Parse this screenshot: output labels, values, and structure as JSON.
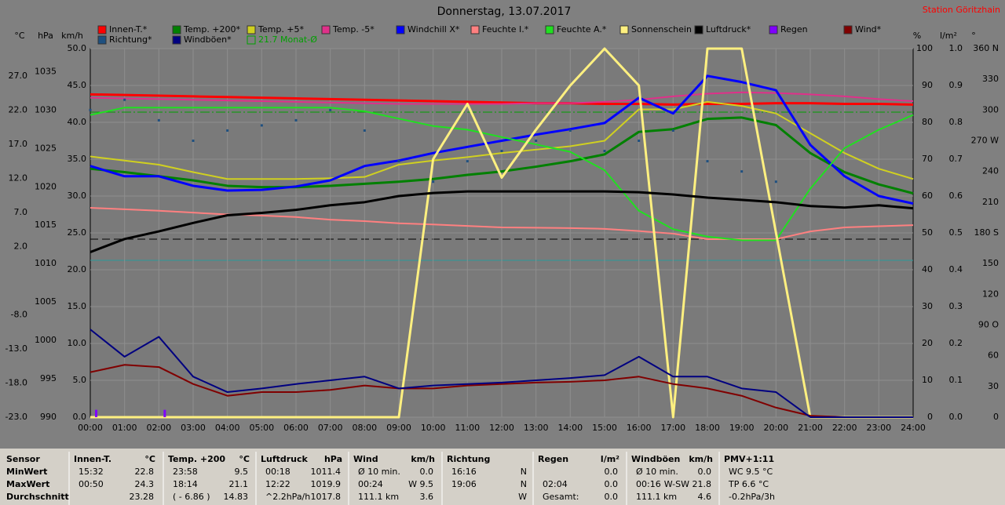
{
  "chart_data": {
    "type": "line",
    "title": "Donnerstag, 13.07.2017",
    "station": "Station Göritzhain",
    "categories": [
      "00:00",
      "01:00",
      "02:00",
      "03:00",
      "04:00",
      "05:00",
      "06:00",
      "07:00",
      "08:00",
      "09:00",
      "10:00",
      "11:00",
      "12:00",
      "13:00",
      "14:00",
      "15:00",
      "16:00",
      "17:00",
      "18:00",
      "19:00",
      "20:00",
      "21:00",
      "22:00",
      "23:00",
      "24:00"
    ],
    "grid": true,
    "axes": [
      {
        "unit": "°C",
        "side": "left",
        "ylim": [
          -23,
          31
        ],
        "yticks": [
          {
            "value": 27,
            "label": "27.0"
          },
          {
            "value": 22,
            "label": "22.0"
          },
          {
            "value": 17,
            "label": "17.0"
          },
          {
            "value": 12,
            "label": "12.0"
          },
          {
            "value": 7,
            "label": "7.0"
          },
          {
            "value": 2,
            "label": "2.0"
          },
          {
            "value": -8,
            "label": "-8.0"
          },
          {
            "value": -13,
            "label": "-13.0"
          },
          {
            "value": -18,
            "label": "-18.0"
          },
          {
            "value": -23,
            "label": "-23.0"
          }
        ]
      },
      {
        "unit": "hPa",
        "side": "left",
        "ylim": [
          990,
          1038
        ],
        "yticks": [
          1035,
          1030,
          1025,
          1020,
          1015,
          1010,
          1005,
          1000,
          995,
          990
        ]
      },
      {
        "unit": "km/h",
        "side": "left",
        "ylim": [
          0,
          50
        ],
        "yticks": [
          {
            "value": 50,
            "label": "50.0"
          },
          {
            "value": 45,
            "label": "45.0"
          },
          {
            "value": 40,
            "label": "40.0"
          },
          {
            "value": 35,
            "label": "35.0"
          },
          {
            "value": 30,
            "label": "30.0"
          },
          {
            "value": 25,
            "label": "25.0"
          },
          {
            "value": 20,
            "label": "20.0"
          },
          {
            "value": 15,
            "label": "15.0"
          },
          {
            "value": 10,
            "label": "10.0"
          },
          {
            "value": 5,
            "label": "5.0"
          },
          {
            "value": 0,
            "label": "0.0"
          }
        ]
      },
      {
        "unit": "%",
        "side": "right",
        "ylim": [
          0,
          100
        ],
        "yticks": [
          100,
          90,
          80,
          70,
          60,
          50,
          40,
          30,
          20,
          10,
          0
        ]
      },
      {
        "unit": "l/m²",
        "side": "right",
        "ylim": [
          0,
          1
        ],
        "yticks": [
          {
            "value": 1,
            "label": "1.0"
          },
          {
            "value": 0.9,
            "label": "0.9"
          },
          {
            "value": 0.8,
            "label": "0.8"
          },
          {
            "value": 0.7,
            "label": "0.7"
          },
          {
            "value": 0.6,
            "label": "0.6"
          },
          {
            "value": 0.5,
            "label": "0.5"
          },
          {
            "value": 0.4,
            "label": "0.4"
          },
          {
            "value": 0.3,
            "label": "0.3"
          },
          {
            "value": 0.2,
            "label": "0.2"
          },
          {
            "value": 0.1,
            "label": "0.1"
          },
          {
            "value": 0,
            "label": "0.0"
          }
        ]
      },
      {
        "unit": "°",
        "side": "right",
        "ylim": [
          0,
          360
        ],
        "yticks": [
          {
            "value": 360,
            "label": "360 N"
          },
          330,
          300,
          {
            "value": 270,
            "label": "270 W"
          },
          240,
          210,
          {
            "value": 180,
            "label": "180 S"
          },
          150,
          120,
          {
            "value": 90,
            "label": "90 O"
          },
          60,
          30,
          0
        ]
      }
    ],
    "series": [
      {
        "name": "Innen-T.*",
        "color": "#ff0000",
        "axis": 0,
        "width": 3,
        "values": [
          24.3,
          24.2,
          24.1,
          24.0,
          23.9,
          23.8,
          23.7,
          23.6,
          23.5,
          23.4,
          23.3,
          23.2,
          23.1,
          23.0,
          23.0,
          22.9,
          22.9,
          22.8,
          22.9,
          22.9,
          23.0,
          23.0,
          22.9,
          22.9,
          22.8
        ]
      },
      {
        "name": "Temp. +200*",
        "color": "#008000",
        "axis": 0,
        "width": 3,
        "values": [
          13.4,
          12.9,
          12.3,
          11.7,
          10.9,
          10.7,
          10.7,
          10.9,
          11.2,
          11.5,
          11.9,
          12.5,
          13.0,
          13.7,
          14.5,
          15.5,
          18.8,
          19.2,
          20.7,
          20.9,
          19.8,
          15.7,
          12.9,
          11.1,
          9.8
        ]
      },
      {
        "name": "Temp. +5*",
        "color": "#d0d020",
        "axis": 0,
        "width": 2,
        "values": [
          15.2,
          14.6,
          14.0,
          12.9,
          11.9,
          11.9,
          11.9,
          12.0,
          12.2,
          14.0,
          14.6,
          15.1,
          15.7,
          16.2,
          16.7,
          17.5,
          22.1,
          22.1,
          23.2,
          22.6,
          21.5,
          18.6,
          15.7,
          13.4,
          11.9
        ]
      },
      {
        "name": "Temp. -5*",
        "color": "#e0308a",
        "axis": 0,
        "width": 2,
        "values": [
          23.8,
          23.7,
          23.6,
          23.5,
          23.4,
          23.3,
          23.2,
          23.1,
          23.0,
          22.9,
          22.9,
          22.9,
          22.9,
          23.0,
          23.0,
          23.2,
          23.5,
          24.0,
          24.4,
          24.6,
          24.5,
          24.3,
          24.0,
          23.6,
          23.3
        ]
      },
      {
        "name": "Windchill X*",
        "color": "#0000ff",
        "axis": 0,
        "width": 3,
        "values": [
          13.8,
          12.3,
          12.3,
          10.9,
          10.2,
          10.3,
          10.8,
          11.7,
          13.8,
          14.6,
          15.7,
          16.6,
          17.5,
          18.4,
          19.2,
          20.1,
          23.8,
          21.5,
          27.0,
          26.1,
          24.9,
          16.9,
          12.3,
          9.4,
          8.3
        ]
      },
      {
        "name": "Feuchte I.*",
        "color": "#ff8080",
        "axis": 3,
        "width": 2,
        "values": [
          56.8,
          56.4,
          56.0,
          55.5,
          55.0,
          54.7,
          54.3,
          53.6,
          53.2,
          52.6,
          52.3,
          51.9,
          51.5,
          51.4,
          51.3,
          51.1,
          50.5,
          49.8,
          48.3,
          48.3,
          48.3,
          50.4,
          51.5,
          51.8,
          52.1
        ]
      },
      {
        "name": "Feuchte A.*",
        "color": "#20e020",
        "axis": 3,
        "width": 2,
        "values": [
          82,
          84,
          84,
          84,
          84,
          84,
          84,
          84,
          83,
          81,
          79,
          78,
          76,
          74,
          72,
          67,
          56,
          51,
          49,
          48,
          48,
          62,
          73,
          78,
          82
        ]
      },
      {
        "name": "Sonnenschein",
        "color": "#fff080",
        "axis": 3,
        "width": 3,
        "values": [
          0,
          0,
          0,
          0,
          0,
          0,
          0,
          0,
          0,
          0,
          70,
          85,
          65,
          78,
          90,
          100,
          90,
          0,
          100,
          100,
          50,
          0,
          0,
          0,
          0
        ]
      },
      {
        "name": "Luftdruck*",
        "color": "#000000",
        "axis": 1,
        "width": 3,
        "values": [
          1011.5,
          1013.2,
          1014.2,
          1015.3,
          1016.3,
          1016.6,
          1017.0,
          1017.6,
          1018.0,
          1018.8,
          1019.2,
          1019.4,
          1019.4,
          1019.4,
          1019.4,
          1019.4,
          1019.3,
          1019.0,
          1018.6,
          1018.3,
          1018.0,
          1017.5,
          1017.3,
          1017.6,
          1017.2
        ]
      },
      {
        "name": "Regen",
        "color": "#8000ff",
        "axis": 4,
        "kind": "bars",
        "values": [
          0.02,
          0,
          0.02,
          0,
          0,
          0,
          0,
          0,
          0,
          0,
          0,
          0,
          0,
          0,
          0,
          0,
          0,
          0,
          0,
          0,
          0,
          0,
          0,
          0,
          0
        ]
      },
      {
        "name": "Wind*",
        "color": "#800000",
        "axis": 2,
        "width": 2,
        "values": [
          6.1,
          7.1,
          6.8,
          4.5,
          2.9,
          3.4,
          3.4,
          3.7,
          4.3,
          3.9,
          3.9,
          4.3,
          4.5,
          4.7,
          4.8,
          5.0,
          5.5,
          4.5,
          3.9,
          2.9,
          1.3,
          0.2,
          0,
          0,
          0
        ]
      },
      {
        "name": "Richtung*",
        "color": "#1e5080",
        "axis": 5,
        "kind": "dots",
        "values": [
          300,
          310,
          290,
          270,
          280,
          285,
          290,
          300,
          280,
          250,
          230,
          250,
          260,
          270,
          280,
          260,
          270,
          280,
          250,
          240,
          230,
          null,
          null,
          null,
          null
        ]
      },
      {
        "name": "Windböen*",
        "color": "#000080",
        "axis": 2,
        "width": 2,
        "values": [
          11.9,
          8.2,
          10.9,
          5.5,
          3.4,
          3.9,
          4.5,
          5.0,
          5.5,
          3.9,
          4.3,
          4.5,
          4.7,
          5.0,
          5.3,
          5.7,
          8.2,
          5.5,
          5.5,
          3.9,
          3.4,
          0,
          0,
          0,
          0
        ]
      }
    ],
    "monthly_mean": {
      "label": "21.7 Monat-Ø",
      "value": 21.7,
      "axis": 0,
      "color": "#00a000"
    }
  },
  "table": {
    "row_labels": [
      "Sensor",
      "MinWert",
      "MaxWert",
      "Durchschnitt"
    ],
    "columns": [
      {
        "title": "Innen-T.",
        "unit": "°C",
        "cells": [
          {
            "left": "15:32",
            "right": "22.8"
          },
          {
            "left": "00:50",
            "right": "24.3"
          },
          {
            "right": "23.28"
          }
        ]
      },
      {
        "title": "Temp. +200",
        "unit": "°C",
        "cells": [
          {
            "left": "23:58",
            "right": "9.5"
          },
          {
            "left": "18:14",
            "right": "21.1"
          },
          {
            "left": "( - 6.86 )",
            "right": "14.83"
          }
        ]
      },
      {
        "title": "Luftdruck",
        "unit": "hPa",
        "cells": [
          {
            "left": "00:18",
            "right": "1011.4"
          },
          {
            "left": "12:22",
            "right": "1019.9"
          },
          {
            "left": "^2.2hPa/h",
            "right": "1017.8"
          }
        ]
      },
      {
        "title": "Wind",
        "unit": "km/h",
        "cells": [
          {
            "left": "Ø 10 min.",
            "right": "0.0"
          },
          {
            "left": "00:24",
            "right": "W 9.5"
          },
          {
            "left": "111.1 km",
            "right": "3.6"
          }
        ]
      },
      {
        "title": "Richtung",
        "cells": [
          {
            "left": "16:16",
            "right": "N"
          },
          {
            "left": "19:06",
            "right": "N"
          },
          {
            "right": "W"
          }
        ]
      },
      {
        "title": "Regen",
        "unit": "l/m²",
        "cells": [
          {
            "right": "0.0"
          },
          {
            "left": "02:04",
            "right": "0.0"
          },
          {
            "left": "Gesamt:",
            "right": "0.0"
          }
        ]
      },
      {
        "title": "Windböen",
        "unit": "km/h",
        "cells": [
          {
            "left": "Ø 10 min.",
            "right": "0.0"
          },
          {
            "left": "00:16",
            "right": "W-SW 21.8"
          },
          {
            "left": "111.1 km",
            "right": "4.6"
          }
        ]
      },
      {
        "title": "PMV+1:11",
        "cells": [
          {
            "left": "WC 9.5 °C"
          },
          {
            "left": "TP 6.6 °C"
          },
          {
            "left": "-0.2hPa/3h"
          }
        ]
      }
    ]
  }
}
